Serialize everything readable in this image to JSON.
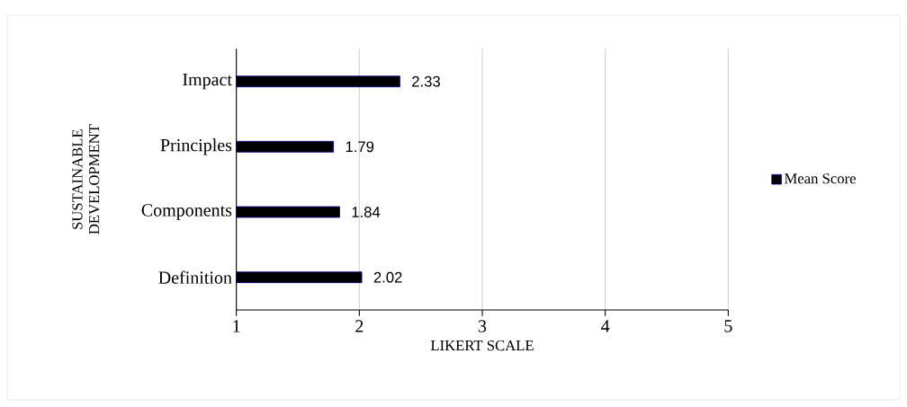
{
  "chart_data": {
    "type": "bar",
    "orientation": "horizontal",
    "categories": [
      "Impact",
      "Principles",
      "Components",
      "Definition"
    ],
    "series": [
      {
        "name": "Mean Score",
        "color": "#000000",
        "values": [
          2.33,
          1.79,
          1.84,
          2.02
        ]
      }
    ],
    "xlabel": "LIKERT SCALE",
    "ylabel": "SUSTAINABLE DEVELOPMENT",
    "xlim": [
      1,
      5
    ],
    "xticks": [
      1,
      2,
      3,
      4,
      5
    ],
    "grid": "x",
    "legend": "right",
    "data_labels": true
  }
}
